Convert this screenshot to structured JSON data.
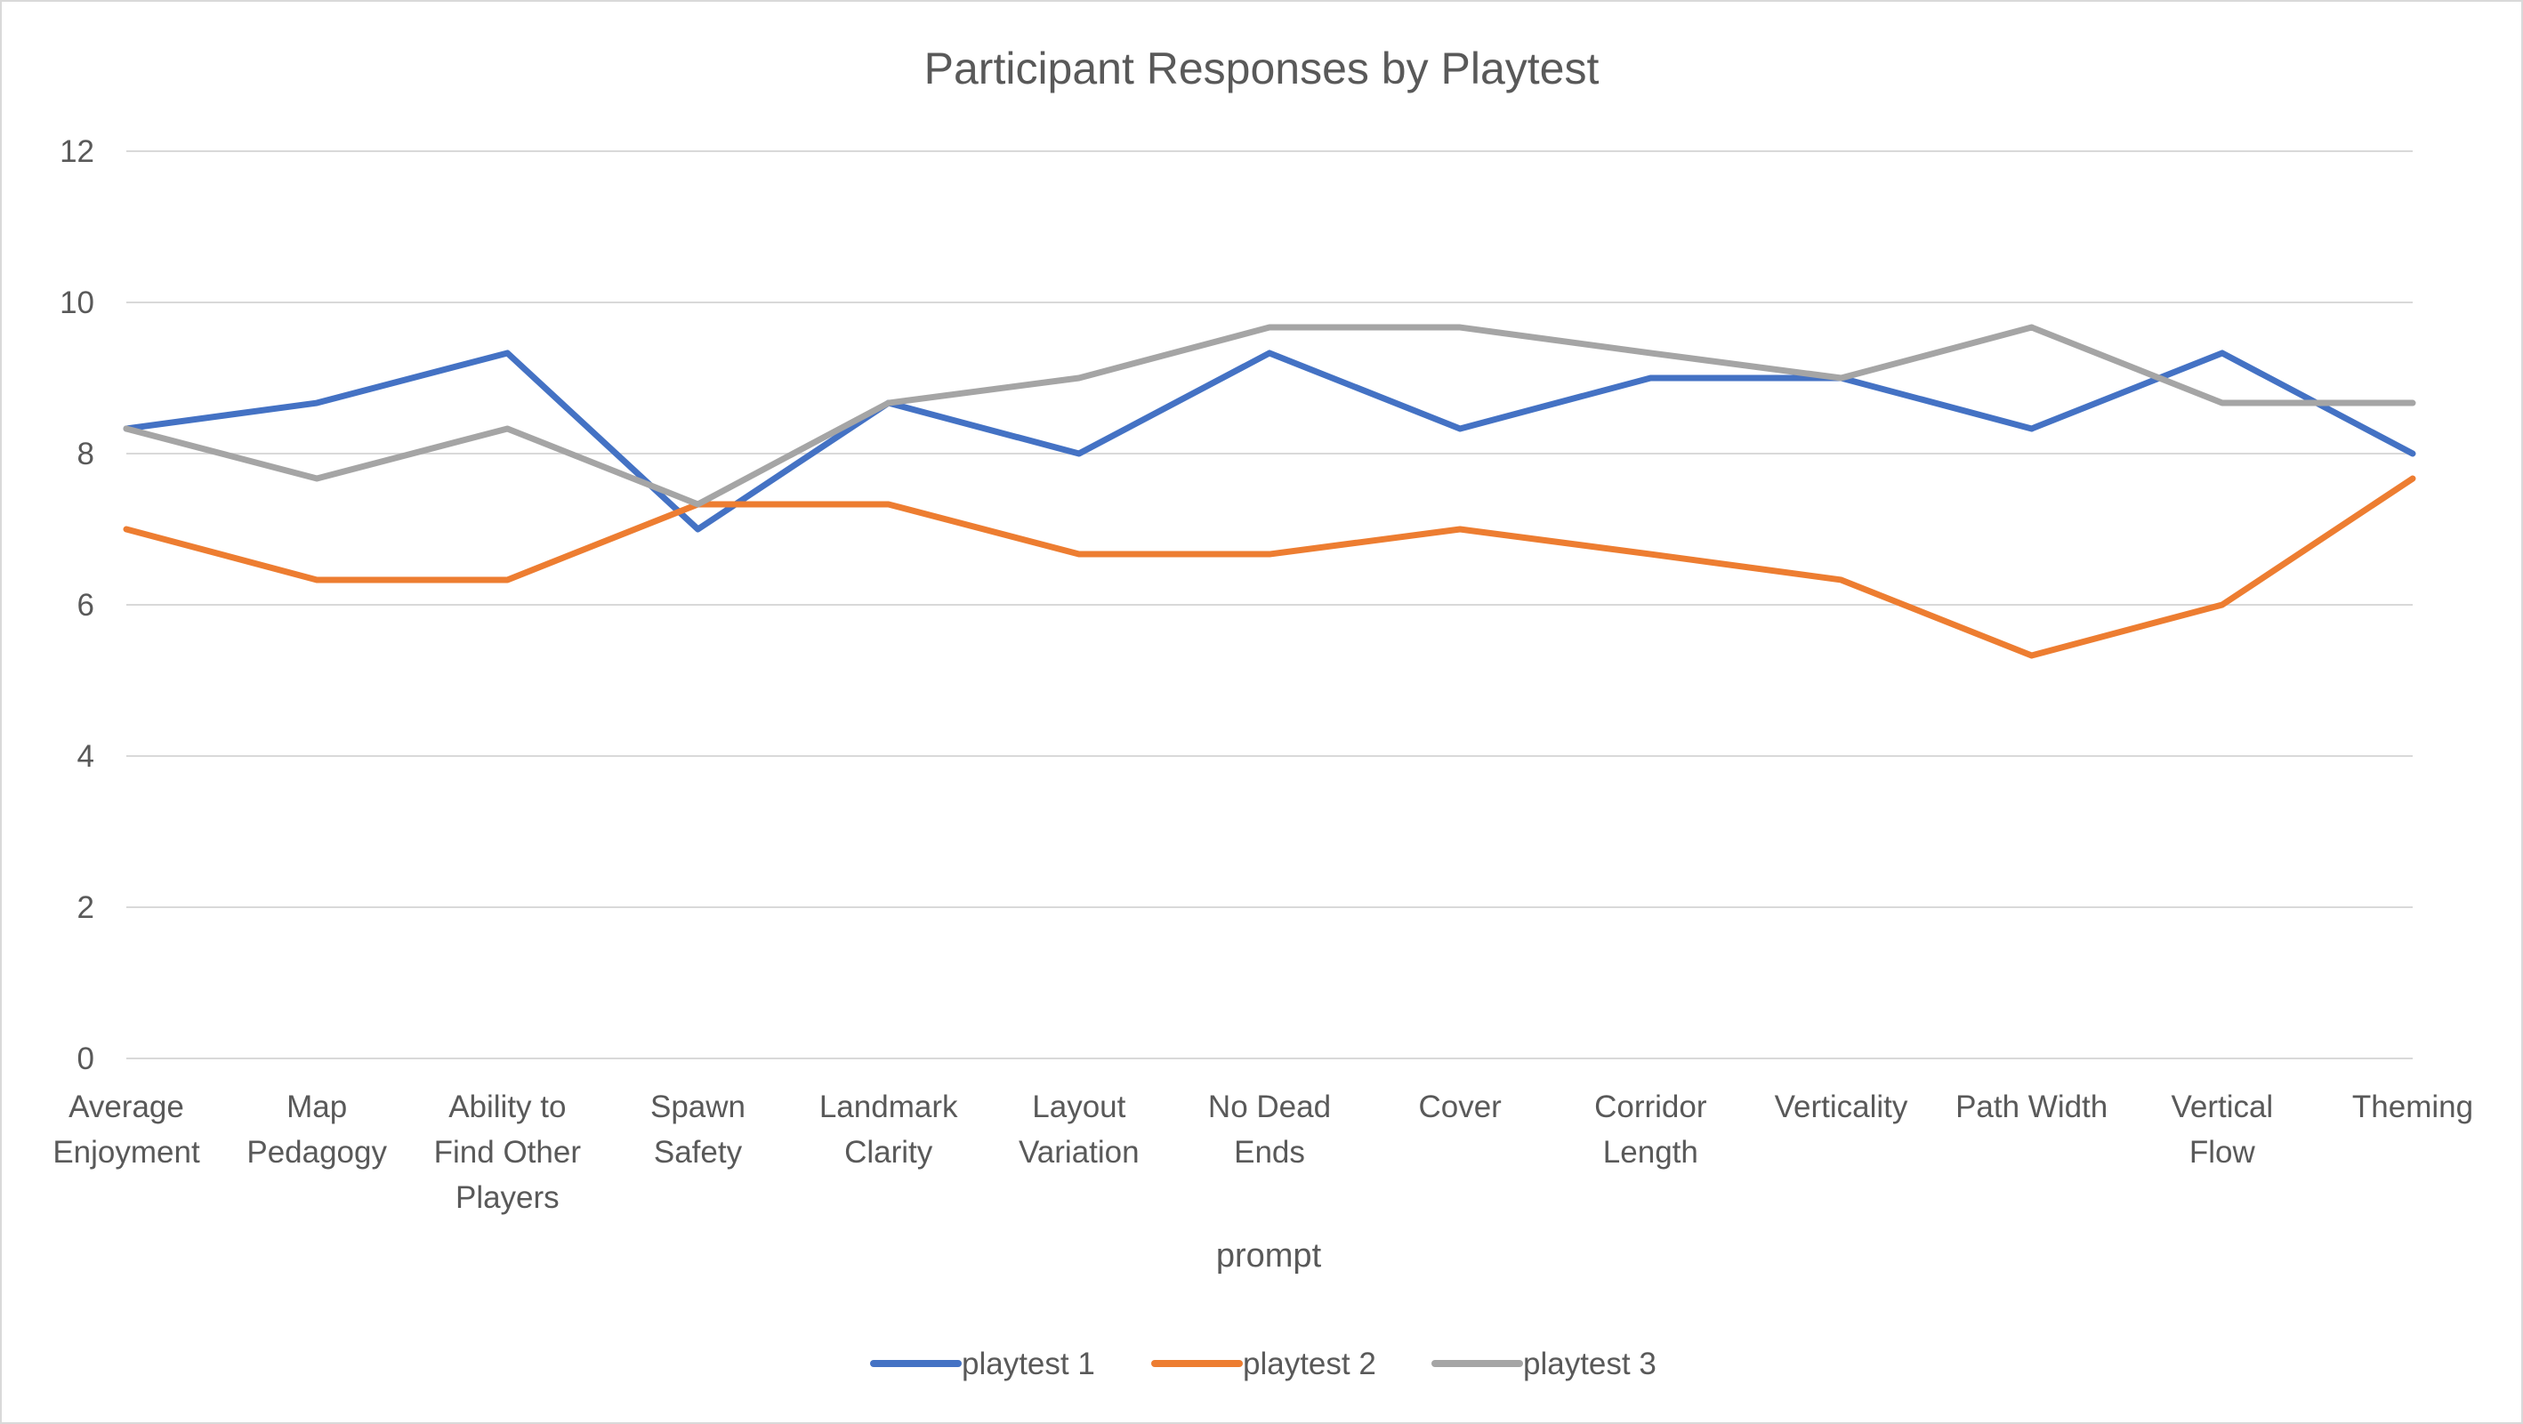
{
  "chart_data": {
    "type": "line",
    "title": "Participant Responses by Playtest",
    "xlabel": "prompt",
    "ylabel": "",
    "ylim": [
      0,
      12
    ],
    "yticks": [
      "0",
      "2",
      "4",
      "6",
      "8",
      "10",
      "12"
    ],
    "grid": true,
    "legend_position": "bottom",
    "categories": [
      [
        "Average",
        "Enjoyment"
      ],
      [
        "Map",
        "Pedagogy"
      ],
      [
        "Ability to",
        "Find Other",
        "Players"
      ],
      [
        "Spawn",
        "Safety"
      ],
      [
        "Landmark",
        "Clarity"
      ],
      [
        "Layout",
        "Variation"
      ],
      [
        "No Dead",
        "Ends"
      ],
      [
        "Cover"
      ],
      [
        "Corridor",
        "Length"
      ],
      [
        "Verticality"
      ],
      [
        "Path Width"
      ],
      [
        "Vertical",
        "Flow"
      ],
      [
        "Theming"
      ]
    ],
    "series": [
      {
        "name": "playtest 1",
        "color": "#4472c4",
        "values": [
          8.33,
          8.67,
          9.33,
          7.0,
          8.67,
          8.0,
          9.33,
          8.33,
          9.0,
          9.0,
          8.33,
          9.33,
          8.0
        ]
      },
      {
        "name": "playtest 2",
        "color": "#ed7d31",
        "values": [
          7.0,
          6.33,
          6.33,
          7.33,
          7.33,
          6.67,
          6.67,
          7.0,
          6.67,
          6.33,
          5.33,
          6.0,
          7.67
        ]
      },
      {
        "name": "playtest 3",
        "color": "#a5a5a5",
        "values": [
          8.33,
          7.67,
          8.33,
          7.33,
          8.67,
          9.0,
          9.67,
          9.67,
          9.33,
          9.0,
          9.67,
          8.67,
          8.67
        ]
      }
    ]
  }
}
